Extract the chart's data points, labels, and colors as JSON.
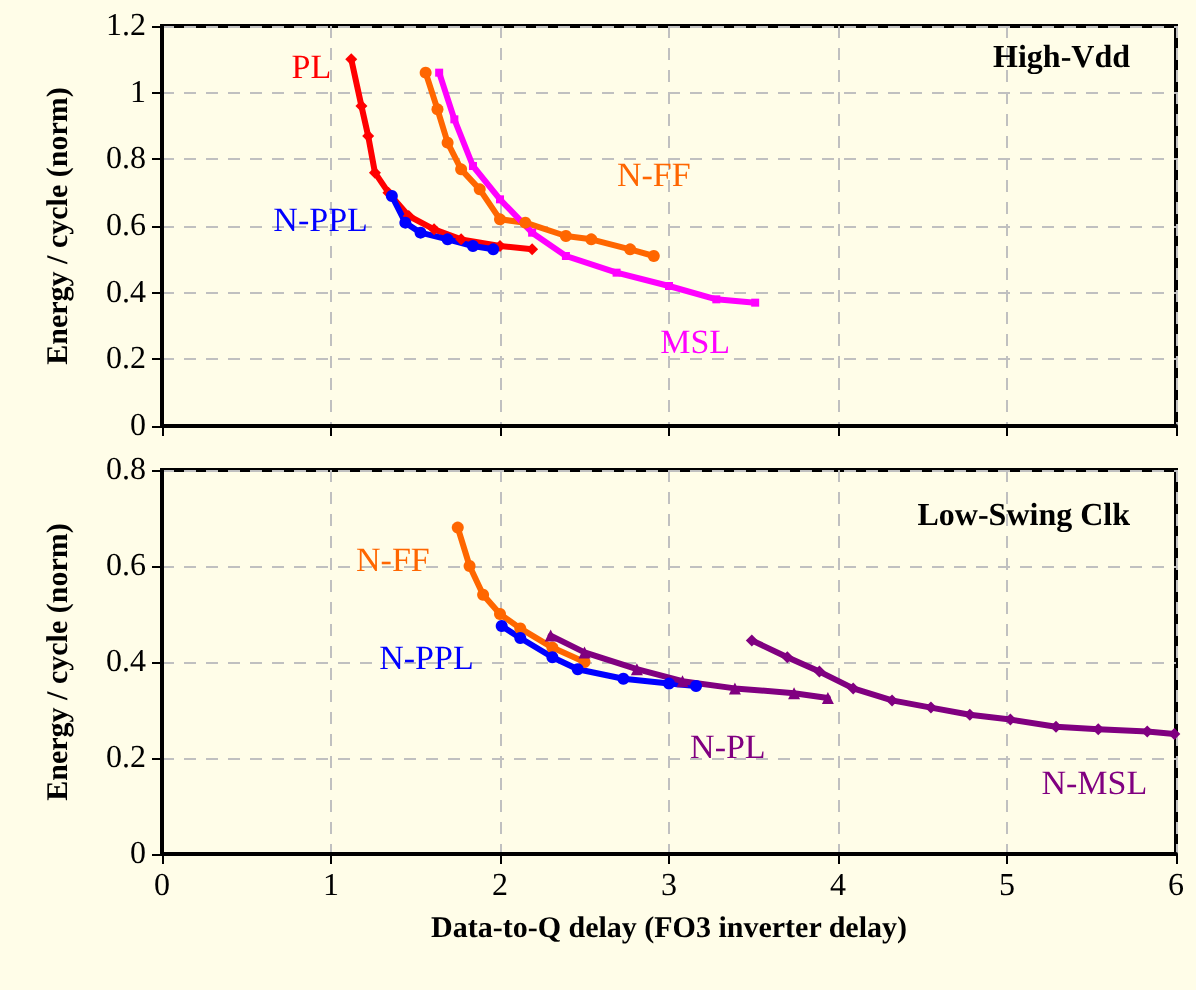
{
  "chart_data": [
    {
      "type": "line",
      "title": "High-Vdd",
      "ylabel": "Energy / cycle (norm)",
      "xlim": [
        0,
        6
      ],
      "xticks": [
        0,
        1,
        2,
        3,
        4,
        5,
        6
      ],
      "ylim": [
        0,
        1.2
      ],
      "yticks": [
        0,
        0.2,
        0.4,
        0.6,
        0.8,
        1.0,
        1.2
      ],
      "tick_labels": "y",
      "grid": true,
      "legend": false,
      "line_style": "solid",
      "series": [
        {
          "name": "PL",
          "color": "#ff0000",
          "marker": "diamond",
          "x": [
            1.12,
            1.18,
            1.22,
            1.26,
            1.34,
            1.46,
            1.61,
            1.77,
            2.0,
            2.19
          ],
          "values": [
            1.1,
            0.96,
            0.87,
            0.76,
            0.7,
            0.63,
            0.59,
            0.56,
            0.54,
            0.53
          ]
        },
        {
          "name": "N-PPL",
          "color": "#0000ff",
          "marker": "circle",
          "x": [
            1.36,
            1.44,
            1.53,
            1.69,
            1.84,
            1.96
          ],
          "values": [
            0.69,
            0.61,
            0.58,
            0.56,
            0.54,
            0.53
          ]
        },
        {
          "name": "N-FF",
          "color": "#ff6600",
          "marker": "circle",
          "x": [
            1.56,
            1.63,
            1.69,
            1.77,
            1.88,
            2.0,
            2.15,
            2.39,
            2.54,
            2.77,
            2.91
          ],
          "values": [
            1.06,
            0.95,
            0.85,
            0.77,
            0.71,
            0.62,
            0.61,
            0.57,
            0.56,
            0.53,
            0.51
          ]
        },
        {
          "name": "MSL",
          "color": "#ff00ff",
          "marker": "square",
          "x": [
            1.64,
            1.73,
            1.84,
            2.0,
            2.19,
            2.39,
            2.69,
            3.0,
            3.28,
            3.51
          ],
          "values": [
            1.06,
            0.92,
            0.78,
            0.68,
            0.58,
            0.51,
            0.46,
            0.42,
            0.38,
            0.37
          ]
        }
      ]
    },
    {
      "type": "line",
      "title": "Low-Swing Clk",
      "xlabel": "Data-to-Q delay (FO3 inverter delay)",
      "ylabel": "Energy / cycle (norm)",
      "xlim": [
        0,
        6
      ],
      "xticks": [
        0,
        1,
        2,
        3,
        4,
        5,
        6
      ],
      "ylim": [
        0,
        0.8
      ],
      "yticks": [
        0,
        0.2,
        0.4,
        0.6,
        0.8
      ],
      "grid": true,
      "legend": false,
      "line_style": "solid",
      "series": [
        {
          "name": "N-FF",
          "color": "#ff6600",
          "marker": "circle",
          "x": [
            1.75,
            1.82,
            1.9,
            2.0,
            2.12,
            2.31,
            2.5
          ],
          "values": [
            0.68,
            0.6,
            0.54,
            0.5,
            0.47,
            0.43,
            0.4
          ]
        },
        {
          "name": "N-PPL",
          "color": "#0000ff",
          "marker": "circle",
          "x": [
            2.01,
            2.12,
            2.31,
            2.46,
            2.73,
            3.0,
            3.16
          ],
          "values": [
            0.475,
            0.45,
            0.41,
            0.385,
            0.365,
            0.355,
            0.35
          ]
        },
        {
          "name": "N-PL",
          "color": "#800080",
          "marker": "triangle",
          "x": [
            2.3,
            2.5,
            2.81,
            3.08,
            3.39,
            3.74,
            3.94
          ],
          "values": [
            0.455,
            0.42,
            0.385,
            0.36,
            0.345,
            0.335,
            0.325
          ]
        },
        {
          "name": "N-MSL",
          "color": "#800080",
          "marker": "diamond",
          "x": [
            3.49,
            3.7,
            3.89,
            4.09,
            4.32,
            4.55,
            4.78,
            5.02,
            5.29,
            5.54,
            5.83,
            5.99
          ],
          "values": [
            0.445,
            0.41,
            0.38,
            0.345,
            0.32,
            0.305,
            0.29,
            0.28,
            0.265,
            0.26,
            0.255,
            0.25
          ]
        }
      ]
    }
  ]
}
